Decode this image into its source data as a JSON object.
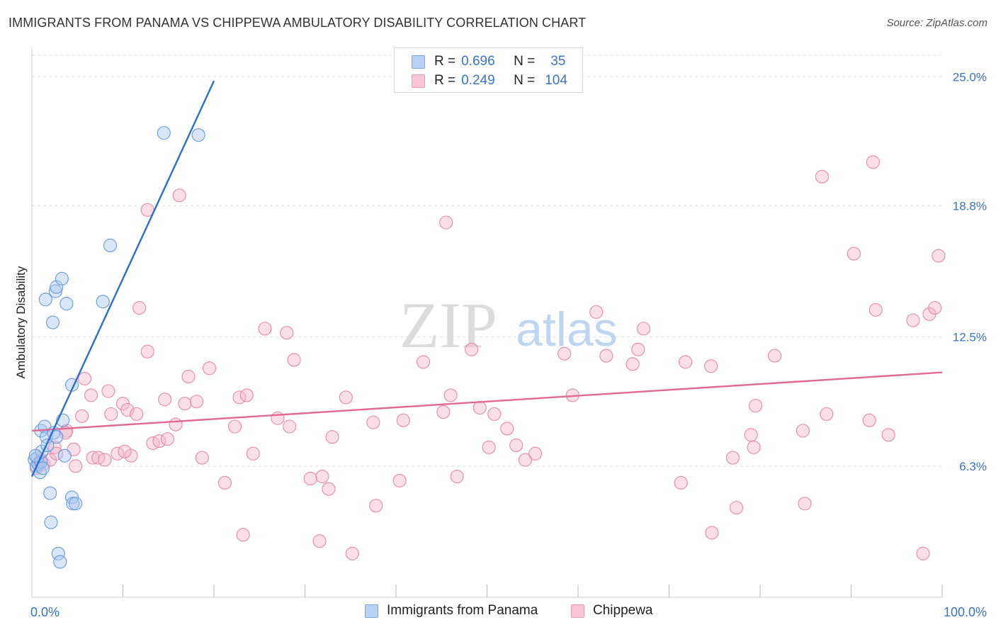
{
  "chart_data": {
    "type": "scatter",
    "title": "IMMIGRANTS FROM PANAMA VS CHIPPEWA AMBULATORY DISABILITY CORRELATION CHART",
    "source": "Source: ZipAtlas.com",
    "xlabel": "",
    "ylabel": "Ambulatory Disability",
    "xlim": [
      0,
      100
    ],
    "ylim": [
      0,
      26.2
    ],
    "x_tick_labels": [
      "0.0%",
      "100.0%"
    ],
    "y_ticks": [
      6.3,
      12.5,
      18.8,
      25.0
    ],
    "y_tick_labels": [
      "6.3%",
      "12.5%",
      "18.8%",
      "25.0%"
    ],
    "grid": true,
    "watermark": {
      "zip": "ZIP",
      "atlas": "atlas"
    },
    "legend_position": "top-center",
    "legend": [
      {
        "r_label": "R =",
        "r_value": "0.696",
        "n_label": "N =",
        "n_value": "35"
      },
      {
        "r_label": "R =",
        "r_value": "0.249",
        "n_label": "N =",
        "n_value": "104"
      }
    ],
    "colors": {
      "blue_fill": "#aac8f0",
      "blue_stroke": "#6a9ad8",
      "blue_line": "#2a6fd0",
      "pink_fill": "#f5b8cc",
      "pink_stroke": "#e58aa8",
      "pink_line": "#e06a94",
      "tick_label": "#3a73c8",
      "grid": "#e0e0e0"
    },
    "series": [
      {
        "name": "Immigrants from Panama",
        "trend": {
          "x0": 0.0,
          "y0": 5.8,
          "x1": 20.0,
          "y1": 24.8
        },
        "points": [
          [
            0.3,
            6.6
          ],
          [
            0.5,
            6.3
          ],
          [
            0.6,
            6.7
          ],
          [
            0.7,
            6.4
          ],
          [
            0.9,
            6.0
          ],
          [
            1.0,
            6.5
          ],
          [
            1.1,
            7.0
          ],
          [
            1.0,
            8.0
          ],
          [
            1.4,
            8.2
          ],
          [
            1.6,
            7.7
          ],
          [
            1.7,
            7.3
          ],
          [
            2.4,
            7.9
          ],
          [
            2.7,
            7.7
          ],
          [
            1.5,
            14.3
          ],
          [
            2.3,
            13.2
          ],
          [
            2.6,
            14.7
          ],
          [
            2.7,
            14.9
          ],
          [
            3.3,
            15.3
          ],
          [
            3.8,
            14.1
          ],
          [
            3.4,
            8.5
          ],
          [
            3.6,
            6.8
          ],
          [
            4.4,
            10.2
          ],
          [
            4.4,
            4.8
          ],
          [
            4.5,
            4.5
          ],
          [
            4.8,
            4.5
          ],
          [
            2.0,
            5.0
          ],
          [
            2.1,
            3.6
          ],
          [
            2.9,
            2.1
          ],
          [
            3.1,
            1.7
          ],
          [
            7.8,
            14.2
          ],
          [
            8.6,
            16.9
          ],
          [
            14.5,
            22.3
          ],
          [
            18.3,
            22.2
          ],
          [
            0.4,
            6.8
          ],
          [
            1.2,
            6.2
          ]
        ]
      },
      {
        "name": "Chippewa",
        "trend": {
          "x0": 0.0,
          "y0": 8.0,
          "x1": 100.0,
          "y1": 10.8
        },
        "points": [
          [
            0.5,
            6.2
          ],
          [
            1.0,
            6.6
          ],
          [
            1.3,
            6.4
          ],
          [
            2.0,
            6.6
          ],
          [
            2.5,
            7.2
          ],
          [
            2.7,
            6.9
          ],
          [
            3.8,
            8.0
          ],
          [
            3.7,
            7.9
          ],
          [
            4.6,
            7.1
          ],
          [
            4.8,
            6.3
          ],
          [
            5.5,
            8.7
          ],
          [
            5.8,
            10.5
          ],
          [
            6.5,
            9.7
          ],
          [
            6.7,
            6.7
          ],
          [
            7.3,
            6.7
          ],
          [
            8.0,
            6.6
          ],
          [
            8.4,
            9.9
          ],
          [
            8.7,
            8.8
          ],
          [
            9.4,
            6.9
          ],
          [
            10.0,
            9.3
          ],
          [
            10.5,
            9.0
          ],
          [
            10.9,
            6.8
          ],
          [
            11.5,
            8.8
          ],
          [
            11.8,
            13.9
          ],
          [
            12.7,
            11.8
          ],
          [
            12.7,
            18.6
          ],
          [
            13.3,
            7.4
          ],
          [
            14.0,
            7.5
          ],
          [
            14.6,
            9.5
          ],
          [
            14.9,
            7.6
          ],
          [
            15.8,
            8.3
          ],
          [
            16.2,
            19.3
          ],
          [
            16.8,
            9.3
          ],
          [
            17.2,
            10.6
          ],
          [
            18.1,
            9.4
          ],
          [
            18.7,
            6.7
          ],
          [
            19.5,
            11.0
          ],
          [
            21.2,
            5.5
          ],
          [
            22.3,
            8.2
          ],
          [
            22.8,
            9.6
          ],
          [
            23.2,
            3.0
          ],
          [
            23.6,
            9.7
          ],
          [
            24.3,
            6.9
          ],
          [
            25.6,
            12.9
          ],
          [
            27.0,
            8.6
          ],
          [
            28.0,
            12.7
          ],
          [
            28.3,
            8.2
          ],
          [
            28.8,
            11.4
          ],
          [
            30.6,
            5.7
          ],
          [
            31.6,
            2.7
          ],
          [
            31.9,
            5.8
          ],
          [
            32.6,
            5.2
          ],
          [
            33.0,
            7.7
          ],
          [
            34.5,
            9.6
          ],
          [
            35.2,
            2.1
          ],
          [
            37.5,
            8.4
          ],
          [
            37.8,
            4.4
          ],
          [
            40.4,
            5.6
          ],
          [
            40.8,
            8.5
          ],
          [
            43.0,
            11.3
          ],
          [
            45.2,
            8.9
          ],
          [
            45.5,
            18.0
          ],
          [
            46.0,
            9.7
          ],
          [
            46.7,
            5.8
          ],
          [
            48.3,
            11.9
          ],
          [
            49.2,
            9.1
          ],
          [
            50.2,
            7.2
          ],
          [
            50.8,
            8.8
          ],
          [
            52.2,
            8.1
          ],
          [
            53.2,
            7.3
          ],
          [
            54.2,
            6.6
          ],
          [
            55.3,
            6.9
          ],
          [
            58.5,
            11.7
          ],
          [
            59.4,
            9.7
          ],
          [
            62.0,
            13.7
          ],
          [
            63.1,
            11.6
          ],
          [
            66.0,
            11.2
          ],
          [
            66.6,
            11.9
          ],
          [
            67.2,
            12.9
          ],
          [
            71.3,
            5.5
          ],
          [
            71.8,
            11.3
          ],
          [
            74.6,
            11.1
          ],
          [
            74.7,
            3.1
          ],
          [
            77.0,
            6.7
          ],
          [
            77.4,
            4.3
          ],
          [
            79.0,
            7.8
          ],
          [
            79.3,
            7.2
          ],
          [
            79.5,
            9.2
          ],
          [
            81.6,
            11.6
          ],
          [
            84.7,
            8.0
          ],
          [
            84.9,
            4.5
          ],
          [
            86.8,
            20.2
          ],
          [
            87.3,
            8.8
          ],
          [
            90.3,
            16.5
          ],
          [
            92.0,
            8.5
          ],
          [
            92.4,
            20.9
          ],
          [
            92.7,
            13.8
          ],
          [
            94.1,
            7.8
          ],
          [
            96.8,
            13.3
          ],
          [
            97.9,
            2.1
          ],
          [
            98.6,
            13.6
          ],
          [
            99.2,
            13.9
          ],
          [
            99.6,
            16.4
          ],
          [
            10.2,
            7.0
          ]
        ]
      }
    ]
  }
}
